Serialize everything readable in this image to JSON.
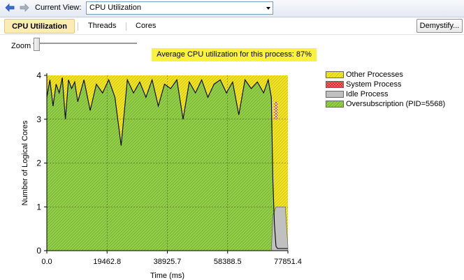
{
  "toolbar": {
    "back_icon": "back-arrow-icon",
    "forward_icon": "forward-arrow-icon",
    "current_view_label": "Current View:",
    "current_view_value": "CPU Utilization"
  },
  "tabs": [
    {
      "label": "CPU Utilization",
      "active": true
    },
    {
      "label": "Threads",
      "active": false
    },
    {
      "label": "Cores",
      "active": false
    }
  ],
  "demystify_label": "Demystify...",
  "zoom": {
    "label": "Zoom",
    "level": 0
  },
  "banner": "Average CPU utilization for this process: 87%",
  "legend": [
    {
      "label": "Other Processes",
      "color": "#f2e627"
    },
    {
      "label": "System Process",
      "color": "#e0262a"
    },
    {
      "label": "Idle Process",
      "color": "#c0c0c0"
    },
    {
      "label": "Oversubscription (PID=5568)",
      "color": "#94d04a"
    }
  ],
  "chart_data": {
    "type": "area",
    "xlabel": "Time (ms)",
    "ylabel": "Number of Logical Cores",
    "xlim": [
      0.0,
      77851.4
    ],
    "ylim": [
      0,
      4
    ],
    "x_ticks": [
      "0.0",
      "19462.8",
      "38925.7",
      "58388.5",
      "77851.4"
    ],
    "y_ticks": [
      "0",
      "1",
      "2",
      "3",
      "4"
    ],
    "grid": true,
    "legend_position": "right",
    "series": [
      {
        "name": "Oversubscription (PID=5568)",
        "x": [
          0,
          1000,
          2000,
          3000,
          4000,
          5000,
          6000,
          7000,
          8000,
          9000,
          10000,
          12000,
          14000,
          16000,
          18000,
          20000,
          22000,
          24000,
          26000,
          28000,
          30000,
          32000,
          34000,
          36000,
          38000,
          40000,
          42000,
          44000,
          46000,
          48000,
          50000,
          52000,
          54000,
          56000,
          58000,
          60000,
          62000,
          64000,
          66000,
          68000,
          70000,
          71500,
          72500,
          73000,
          73500,
          74000,
          74500,
          75000,
          75500,
          76000,
          77000,
          77851.4
        ],
        "values": [
          3.5,
          3.9,
          3.3,
          3.8,
          3.6,
          3.95,
          3.0,
          3.9,
          3.7,
          3.85,
          3.4,
          3.9,
          3.2,
          3.8,
          3.6,
          3.9,
          3.5,
          2.4,
          3.9,
          3.6,
          3.85,
          3.5,
          3.9,
          3.3,
          3.8,
          3.7,
          3.9,
          3.0,
          3.85,
          3.6,
          3.9,
          3.5,
          3.8,
          3.9,
          3.6,
          3.85,
          3.1,
          3.9,
          3.7,
          3.85,
          3.6,
          3.9,
          3.5,
          1.6,
          0.6,
          0.1,
          0.05,
          0.05,
          0.05,
          0.05,
          0.05,
          0.05
        ]
      },
      {
        "name": "System Process",
        "x": [
          73500,
          74500
        ],
        "values": [
          3.0,
          3.4
        ]
      },
      {
        "name": "Idle Process",
        "x": [
          72500,
          73000,
          74000,
          75000,
          75500,
          76000,
          77000,
          77851.4
        ],
        "values": [
          0,
          0.8,
          1.0,
          1.0,
          1.0,
          1.0,
          1.0,
          0.1
        ]
      },
      {
        "name": "Other Processes",
        "x": [
          0,
          77851.4
        ],
        "values": [
          4,
          4
        ]
      }
    ]
  }
}
